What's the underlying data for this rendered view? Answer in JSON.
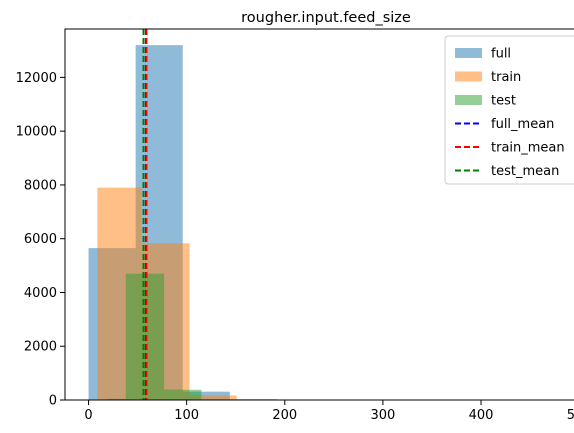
{
  "chart_data": {
    "type": "histogram",
    "title": "rougher.input.feed_size",
    "xlabel": "",
    "ylabel": "",
    "xlim": [
      -24,
      508
    ],
    "ylim": [
      0,
      13800
    ],
    "x_ticks": [
      0,
      100,
      200,
      300,
      400,
      500
    ],
    "y_ticks": [
      0,
      2000,
      4000,
      6000,
      8000,
      10000,
      12000
    ],
    "legend_position": "top-right",
    "series": [
      {
        "name": "full",
        "color": "#1f77b4",
        "alpha": 0.5,
        "bins": [
          {
            "x0": 0,
            "x1": 48,
            "value": 5650
          },
          {
            "x0": 48,
            "x1": 96,
            "value": 13200
          },
          {
            "x0": 96,
            "x1": 144,
            "value": 310
          },
          {
            "x0": 144,
            "x1": 192,
            "value": 30
          },
          {
            "x0": 192,
            "x1": 240,
            "value": 8
          },
          {
            "x0": 240,
            "x1": 288,
            "value": 3
          },
          {
            "x0": 288,
            "x1": 336,
            "value": 2
          },
          {
            "x0": 336,
            "x1": 384,
            "value": 1
          },
          {
            "x0": 384,
            "x1": 432,
            "value": 1
          },
          {
            "x0": 432,
            "x1": 480,
            "value": 1
          }
        ]
      },
      {
        "name": "train",
        "color": "#ff7f0e",
        "alpha": 0.5,
        "bins": [
          {
            "x0": 9,
            "x1": 54,
            "value": 7900
          },
          {
            "x0": 54,
            "x1": 103,
            "value": 5830
          },
          {
            "x0": 103,
            "x1": 151,
            "value": 170
          },
          {
            "x0": 151,
            "x1": 200,
            "value": 20
          },
          {
            "x0": 200,
            "x1": 248,
            "value": 5
          },
          {
            "x0": 248,
            "x1": 297,
            "value": 2
          },
          {
            "x0": 297,
            "x1": 345,
            "value": 1
          },
          {
            "x0": 345,
            "x1": 394,
            "value": 1
          },
          {
            "x0": 394,
            "x1": 442,
            "value": 1
          },
          {
            "x0": 442,
            "x1": 490,
            "value": 1
          }
        ]
      },
      {
        "name": "test",
        "color": "#2ca02c",
        "alpha": 0.5,
        "bins": [
          {
            "x0": 0,
            "x1": 19,
            "value": 5
          },
          {
            "x0": 19,
            "x1": 38,
            "value": 40
          },
          {
            "x0": 38,
            "x1": 57,
            "value": 4700
          },
          {
            "x0": 57,
            "x1": 77,
            "value": 4700
          },
          {
            "x0": 77,
            "x1": 96,
            "value": 390
          },
          {
            "x0": 96,
            "x1": 115,
            "value": 380
          },
          {
            "x0": 115,
            "x1": 134,
            "value": 20
          },
          {
            "x0": 134,
            "x1": 154,
            "value": 5
          },
          {
            "x0": 154,
            "x1": 173,
            "value": 1
          },
          {
            "x0": 173,
            "x1": 192,
            "value": 1
          }
        ]
      }
    ],
    "mean_lines": [
      {
        "name": "full_mean",
        "x": 58.5,
        "color": "#0000ff",
        "style": "dashed"
      },
      {
        "name": "train_mean",
        "x": 59,
        "color": "#ff0000",
        "style": "dashed"
      },
      {
        "name": "test_mean",
        "x": 56,
        "color": "#008000",
        "style": "dashed"
      }
    ]
  }
}
